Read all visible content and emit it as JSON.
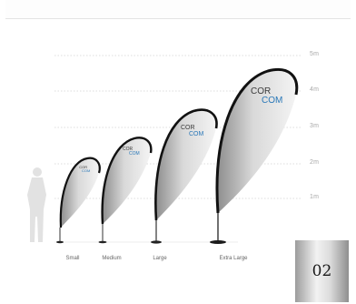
{
  "height_scale": [
    "5m",
    "4m",
    "3m",
    "2m",
    "1m"
  ],
  "flags": [
    {
      "size": "Small",
      "logo_line1": "COR",
      "logo_line2": "COM"
    },
    {
      "size": "Medium",
      "logo_line1": "COR",
      "logo_line2": "COM"
    },
    {
      "size": "Large",
      "logo_line1": "COR",
      "logo_line2": "COM"
    },
    {
      "size": "Extra Large",
      "logo_line1": "COR",
      "logo_line2": "COM"
    }
  ],
  "page_number": "02",
  "colors": {
    "logo_blue": "#2a78b8",
    "logo_dark": "#3a3a3a",
    "flag_edge": "#111111"
  }
}
